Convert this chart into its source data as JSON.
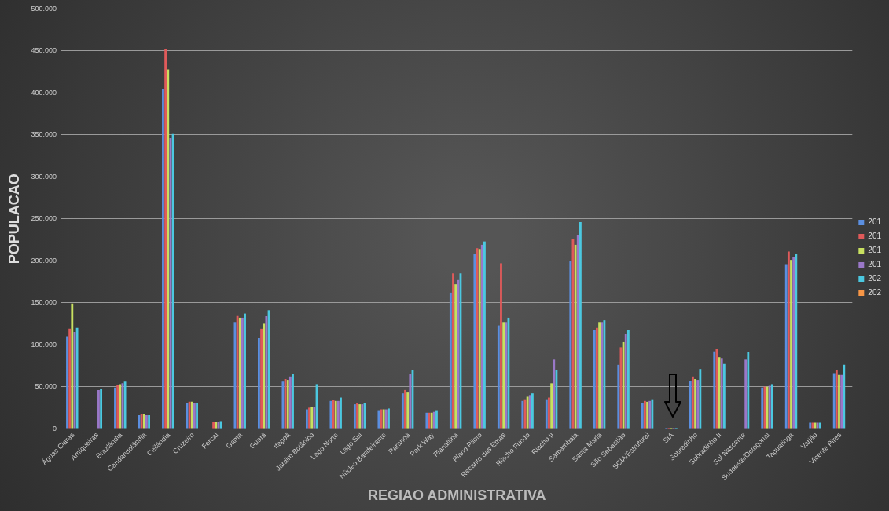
{
  "chart_data": {
    "type": "bar",
    "xlabel": "REGIAO ADMINISTRATIVA",
    "ylabel": "POPULACAO",
    "categories": [
      "Águas Claras",
      "Arniqueiras",
      "Brazlândia",
      "Candangolândia",
      "Ceilândia",
      "Cruzeiro",
      "Fercal",
      "Gama",
      "Guará",
      "Itapoã",
      "Jardim Botânico",
      "Lago Norte",
      "Lago Sul",
      "Núcleo Bandeirante",
      "Paranoá",
      "Park Way",
      "Planaltina",
      "Plano Piloto",
      "Recanto das Emas",
      "Riacho Fundo",
      "Riacho II",
      "Samambaia",
      "Santa Maria",
      "São Sebastião",
      "SCIA/Estrutural",
      "SIA",
      "Sobradinho",
      "Sobradinho II",
      "Sol Nascente",
      "Sudoeste/Octogonal",
      "Taguatinga",
      "Varjão",
      "Vicente Pires"
    ],
    "series": [
      {
        "name": "201",
        "color": "#5b8fe0",
        "values": [
          110000,
          0,
          49000,
          16000,
          404000,
          31000,
          0,
          127000,
          108000,
          56000,
          23000,
          33000,
          29000,
          22000,
          42000,
          19000,
          162000,
          208000,
          123000,
          33000,
          35000,
          200000,
          117000,
          76000,
          30000,
          1000,
          57000,
          92000,
          0,
          49000,
          196000,
          7000,
          66000
        ]
      },
      {
        "name": "201",
        "color": "#e05a5a",
        "values": [
          119000,
          0,
          52000,
          17000,
          452000,
          32000,
          8000,
          135000,
          119000,
          59000,
          25000,
          34000,
          30000,
          23000,
          46000,
          19000,
          185000,
          215000,
          197000,
          35000,
          37000,
          226000,
          120000,
          97000,
          33000,
          1000,
          62000,
          95000,
          0,
          50000,
          211000,
          7000,
          70000
        ]
      },
      {
        "name": "201",
        "color": "#c8e060",
        "values": [
          149000,
          0,
          53000,
          17000,
          428000,
          32000,
          8000,
          132000,
          125000,
          58000,
          26000,
          33000,
          29000,
          23000,
          43000,
          19000,
          172000,
          214000,
          127000,
          38000,
          54000,
          219000,
          127000,
          103000,
          32000,
          1000,
          59000,
          85000,
          0,
          50000,
          201000,
          7000,
          64000
        ]
      },
      {
        "name": "201",
        "color": "#9a78c8",
        "values": [
          115000,
          46000,
          54000,
          16000,
          346000,
          31000,
          8000,
          132000,
          134000,
          62000,
          26000,
          33000,
          29000,
          23000,
          65000,
          20000,
          177000,
          219000,
          127000,
          40000,
          83000,
          231000,
          127000,
          113000,
          33000,
          1000,
          58000,
          84000,
          83000,
          51000,
          204000,
          7000,
          64000
        ]
      },
      {
        "name": "202",
        "color": "#4bc8e0",
        "values": [
          120000,
          47000,
          56000,
          16000,
          351000,
          31000,
          9000,
          137000,
          141000,
          65000,
          53000,
          37000,
          30000,
          24000,
          70000,
          22000,
          185000,
          223000,
          132000,
          42000,
          70000,
          246000,
          129000,
          117000,
          35000,
          1000,
          71000,
          77000,
          91000,
          53000,
          208000,
          7000,
          76000
        ]
      },
      {
        "name": "202",
        "color": "#f79646",
        "values": [
          null,
          null,
          null,
          null,
          null,
          null,
          null,
          null,
          null,
          null,
          null,
          null,
          null,
          null,
          null,
          null,
          null,
          null,
          null,
          null,
          null,
          null,
          null,
          null,
          null,
          null,
          null,
          null,
          null,
          null,
          null,
          null,
          null
        ]
      }
    ],
    "ylim": [
      0,
      500000
    ],
    "yticks": [
      {
        "value": 0,
        "label": "0"
      },
      {
        "value": 50000,
        "label": "50.000"
      },
      {
        "value": 100000,
        "label": "100.000"
      },
      {
        "value": 150000,
        "label": "150.000"
      },
      {
        "value": 200000,
        "label": "200.000"
      },
      {
        "value": 250000,
        "label": "250.000"
      },
      {
        "value": 300000,
        "label": "300.000"
      },
      {
        "value": 350000,
        "label": "350.000"
      },
      {
        "value": 400000,
        "label": "400.000"
      },
      {
        "value": 450000,
        "label": "450.000"
      },
      {
        "value": 500000,
        "label": "500.000"
      }
    ],
    "grid": "y",
    "legend": "right"
  }
}
